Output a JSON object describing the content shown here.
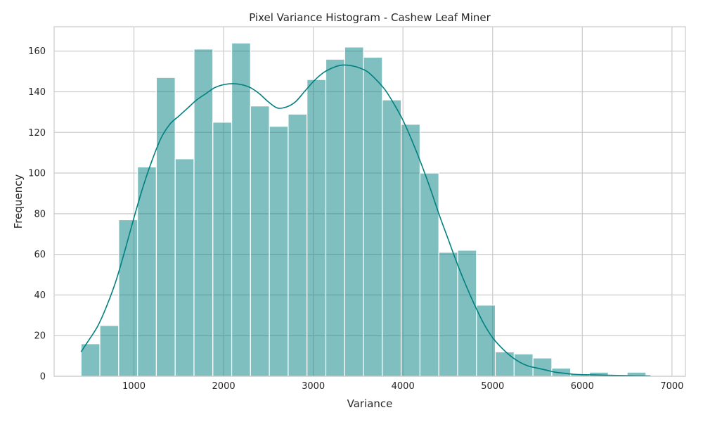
{
  "chart_data": {
    "type": "bar",
    "subtype": "histogram-with-kde",
    "title": "Pixel Variance Histogram - Cashew Leaf Miner",
    "xlabel": "Variance",
    "ylabel": "Frequency",
    "xlim": [
      110,
      7150
    ],
    "ylim": [
      0,
      172
    ],
    "xticks": [
      1000,
      2000,
      3000,
      4000,
      5000,
      6000,
      7000
    ],
    "yticks": [
      0,
      20,
      40,
      60,
      80,
      100,
      120,
      140,
      160
    ],
    "grid": true,
    "colors": {
      "bar_fill": "#008080",
      "bar_fill_opacity": 0.5,
      "bar_edge": "#ffffff",
      "kde_line": "#008080",
      "grid": "#cccccc",
      "axes_edge": "#cccccc",
      "text": "#262626"
    },
    "bins": [
      {
        "x0": 410,
        "x1": 620,
        "count": 16
      },
      {
        "x0": 620,
        "x1": 830,
        "count": 25
      },
      {
        "x0": 830,
        "x1": 1040,
        "count": 77
      },
      {
        "x0": 1040,
        "x1": 1250,
        "count": 103
      },
      {
        "x0": 1250,
        "x1": 1460,
        "count": 147
      },
      {
        "x0": 1460,
        "x1": 1670,
        "count": 107
      },
      {
        "x0": 1670,
        "x1": 1880,
        "count": 161
      },
      {
        "x0": 1880,
        "x1": 2090,
        "count": 125
      },
      {
        "x0": 2090,
        "x1": 2300,
        "count": 164
      },
      {
        "x0": 2300,
        "x1": 2510,
        "count": 133
      },
      {
        "x0": 2510,
        "x1": 2720,
        "count": 123
      },
      {
        "x0": 2720,
        "x1": 2930,
        "count": 129
      },
      {
        "x0": 2930,
        "x1": 3140,
        "count": 146
      },
      {
        "x0": 3140,
        "x1": 3350,
        "count": 156
      },
      {
        "x0": 3350,
        "x1": 3560,
        "count": 162
      },
      {
        "x0": 3560,
        "x1": 3770,
        "count": 157
      },
      {
        "x0": 3770,
        "x1": 3980,
        "count": 136
      },
      {
        "x0": 3980,
        "x1": 4190,
        "count": 124
      },
      {
        "x0": 4190,
        "x1": 4400,
        "count": 100
      },
      {
        "x0": 4400,
        "x1": 4610,
        "count": 61
      },
      {
        "x0": 4610,
        "x1": 4820,
        "count": 62
      },
      {
        "x0": 4820,
        "x1": 5030,
        "count": 35
      },
      {
        "x0": 5030,
        "x1": 5240,
        "count": 12
      },
      {
        "x0": 5240,
        "x1": 5450,
        "count": 11
      },
      {
        "x0": 5450,
        "x1": 5660,
        "count": 9
      },
      {
        "x0": 5660,
        "x1": 5870,
        "count": 4
      },
      {
        "x0": 5870,
        "x1": 6080,
        "count": 1
      },
      {
        "x0": 6080,
        "x1": 6290,
        "count": 2
      },
      {
        "x0": 6290,
        "x1": 6500,
        "count": 0
      },
      {
        "x0": 6500,
        "x1": 6710,
        "count": 2
      }
    ],
    "kde": {
      "x": [
        410,
        500,
        600,
        700,
        800,
        900,
        1000,
        1100,
        1200,
        1300,
        1400,
        1500,
        1600,
        1700,
        1800,
        1900,
        2000,
        2100,
        2200,
        2300,
        2400,
        2500,
        2600,
        2700,
        2800,
        2900,
        3000,
        3100,
        3200,
        3300,
        3400,
        3500,
        3600,
        3700,
        3800,
        3900,
        4000,
        4100,
        4200,
        4300,
        4400,
        4500,
        4600,
        4700,
        4800,
        4900,
        5000,
        5100,
        5200,
        5300,
        5400,
        5500,
        5600,
        5700,
        5800,
        5900,
        6000,
        6200,
        6400,
        6600,
        6760
      ],
      "y": [
        12,
        18,
        25,
        35,
        47,
        62,
        78,
        93,
        106,
        117,
        124,
        128,
        132,
        136,
        139,
        142,
        143.5,
        144,
        143.5,
        142,
        139,
        135,
        132,
        132.5,
        135,
        140,
        145,
        149,
        151.5,
        153,
        153,
        152,
        150,
        146,
        141,
        134,
        126,
        116,
        105,
        93,
        80,
        68,
        56,
        45,
        35,
        26,
        19,
        14,
        10,
        7,
        5,
        4,
        3,
        2,
        1.5,
        1,
        0.8,
        0.6,
        0.4,
        0.3,
        0.2
      ]
    }
  }
}
